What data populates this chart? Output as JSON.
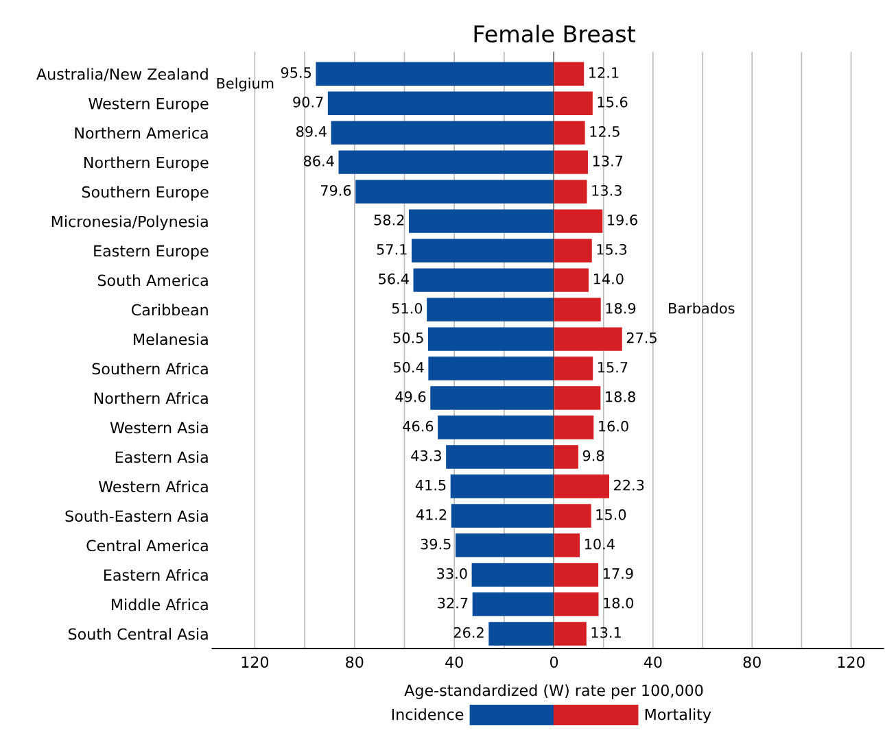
{
  "chart_data": [
    {
      "type": "bar",
      "orientation": "horizontal",
      "title": "Female Breast",
      "xlabel": "Age-standardized (W) rate per 100,000",
      "categories": [
        "Australia/New Zealand",
        "Western Europe",
        "Northern America",
        "Northern Europe",
        "Southern Europe",
        "Micronesia/Polynesia",
        "Eastern Europe",
        "South America",
        "Caribbean",
        "Melanesia",
        "Southern Africa",
        "Northern Africa",
        "Western Asia",
        "Eastern Asia",
        "Western Africa",
        "South-Eastern Asia",
        "Central America",
        "Eastern Africa",
        "Middle Africa",
        "South Central Asia"
      ],
      "series": [
        {
          "name": "Incidence",
          "color": "#0a4c9c",
          "values": [
            95.5,
            90.7,
            89.4,
            86.4,
            79.6,
            58.2,
            57.1,
            56.4,
            51.0,
            50.5,
            50.4,
            49.6,
            46.6,
            43.3,
            41.5,
            41.2,
            39.5,
            33.0,
            32.7,
            26.2
          ],
          "value_labels": [
            "95.5",
            "90.7",
            "89.4",
            "86.4",
            "79.6",
            "58.2",
            "57.1",
            "56.4",
            "51.0",
            "50.5",
            "50.4",
            "49.6",
            "46.6",
            "43.3",
            "41.5",
            "41.2",
            "39.5",
            "33.0",
            "32.7",
            "26.2"
          ]
        }
      ],
      "xlim": [
        137,
        0
      ],
      "xticks": [
        120,
        {
          "value": 100,
          "label": null
        },
        80,
        {
          "value": 60,
          "label": null
        },
        40,
        {
          "value": 20,
          "label": null
        },
        0
      ],
      "grid": "x",
      "legend": "bottom",
      "annotations": [
        "Belgium"
      ]
    },
    {
      "type": "bar",
      "orientation": "horizontal",
      "series": [
        {
          "name": "Mortality",
          "color": "#d41f25",
          "values": [
            12.1,
            15.6,
            12.5,
            13.7,
            13.3,
            19.6,
            15.3,
            14.0,
            18.9,
            27.5,
            15.7,
            18.8,
            16.0,
            9.8,
            22.3,
            15.0,
            10.4,
            17.9,
            18.0,
            13.1
          ],
          "value_labels": [
            "12.1",
            "15.6",
            "12.5",
            "13.7",
            "13.3",
            "19.6",
            "15.3",
            "14.0",
            "18.9",
            "27.5",
            "15.7",
            "18.8",
            "16.0",
            "9.8",
            "22.3",
            "15.0",
            "10.4",
            "17.9",
            "18.0",
            "13.1"
          ]
        }
      ],
      "xlim": [
        0,
        133
      ],
      "xticks": [
        {
          "value": 0,
          "label": null
        },
        {
          "value": 20,
          "label": null
        },
        40,
        {
          "value": 60,
          "label": null
        },
        80,
        {
          "value": 100,
          "label": null
        },
        120
      ],
      "grid": "x",
      "legend": "bottom",
      "tick_labels": "x",
      "annotations": [
        "Barbados"
      ]
    }
  ]
}
